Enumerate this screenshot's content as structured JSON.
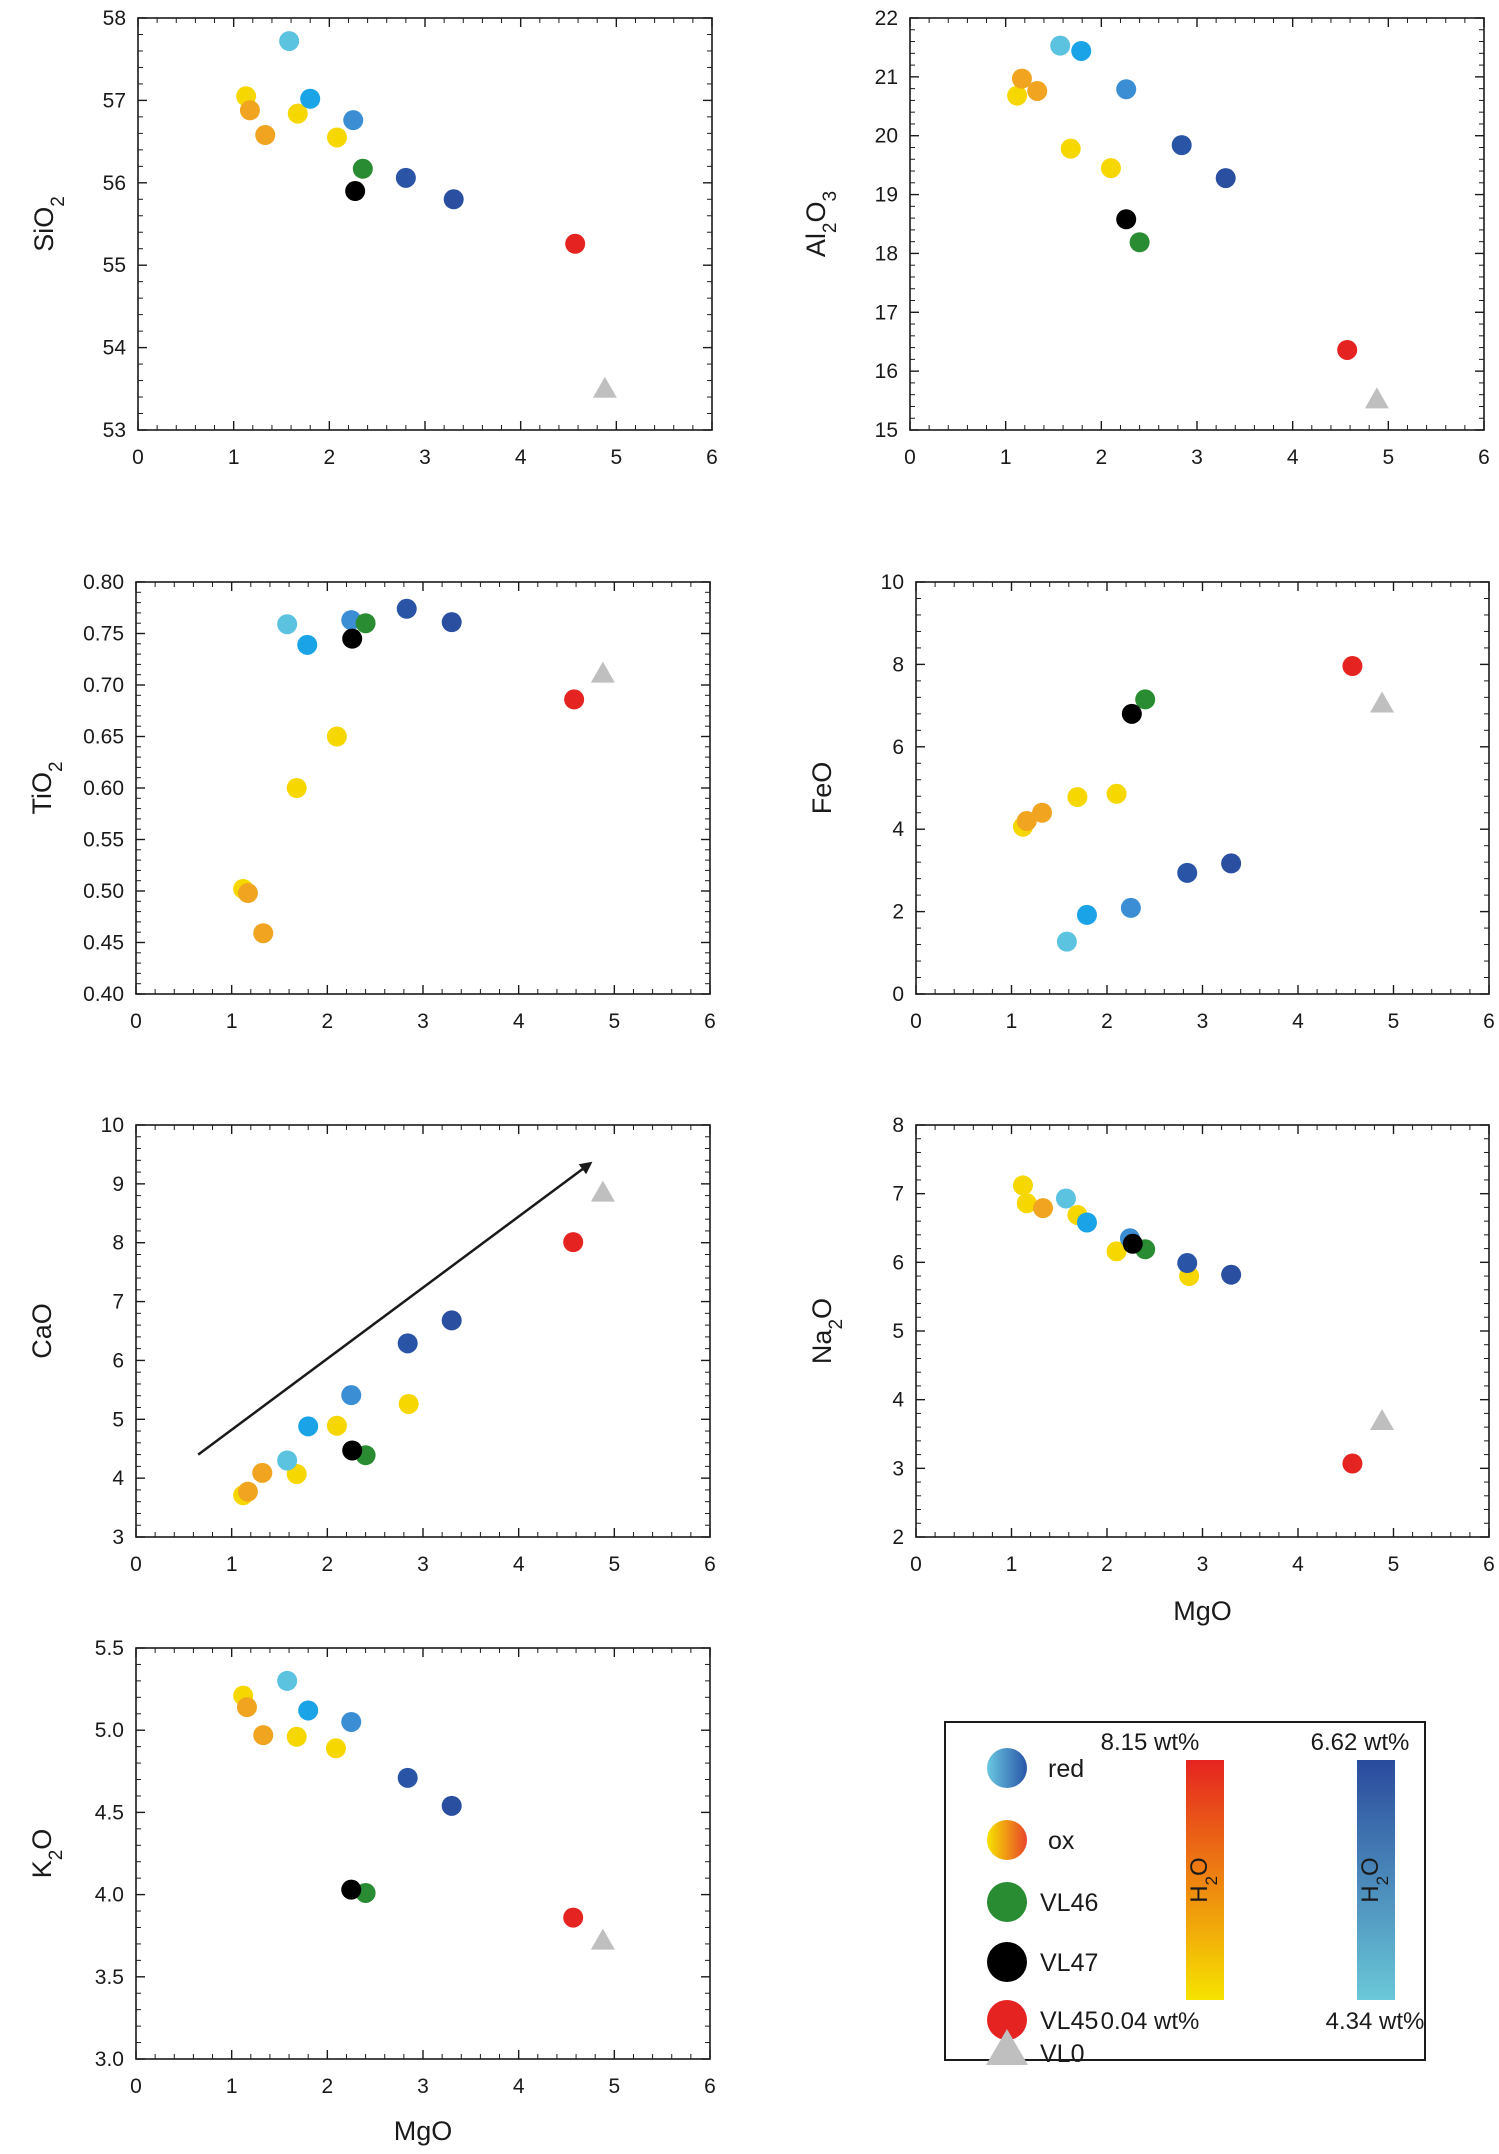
{
  "chart_data": [
    {
      "type": "scatter",
      "xlabel": "",
      "ylabel_main": "SiO",
      "ylabel_sub": "2",
      "xlim": [
        0,
        6
      ],
      "ylim": [
        53,
        58
      ],
      "xticks": [
        "0",
        "1",
        "2",
        "3",
        "4",
        "5",
        "6"
      ],
      "yticks": [
        "53",
        "54",
        "55",
        "56",
        "57",
        "58"
      ],
      "series": [
        {
          "name": "ox",
          "points": [
            {
              "x": 1.13,
              "y": 57.05,
              "c": "#f6d800"
            },
            {
              "x": 1.17,
              "y": 56.88,
              "c": "#f0a420"
            },
            {
              "x": 1.33,
              "y": 56.58,
              "c": "#f0a420"
            },
            {
              "x": 1.67,
              "y": 56.84,
              "c": "#f6d800"
            },
            {
              "x": 2.08,
              "y": 56.55,
              "c": "#f6d800"
            }
          ]
        },
        {
          "name": "red",
          "points": [
            {
              "x": 1.58,
              "y": 57.72,
              "c": "#5bc2e0"
            },
            {
              "x": 1.8,
              "y": 57.02,
              "c": "#1aa3e6"
            },
            {
              "x": 2.25,
              "y": 56.76,
              "c": "#3b8ed4"
            },
            {
              "x": 2.8,
              "y": 56.06,
              "c": "#2a55a6"
            },
            {
              "x": 3.3,
              "y": 55.8,
              "c": "#2a4ea0"
            }
          ]
        },
        {
          "name": "VL46",
          "points": [
            {
              "x": 2.35,
              "y": 56.17,
              "c": "#2a8c32"
            }
          ]
        },
        {
          "name": "VL47",
          "points": [
            {
              "x": 2.27,
              "y": 55.9,
              "c": "#000000"
            }
          ]
        },
        {
          "name": "VL45",
          "points": [
            {
              "x": 4.57,
              "y": 55.26,
              "c": "#e52421"
            }
          ]
        },
        {
          "name": "VL0",
          "points": [
            {
              "x": 4.88,
              "y": 53.5,
              "c": "#bfbfbf"
            }
          ]
        }
      ]
    },
    {
      "type": "scatter",
      "xlabel": "",
      "ylabel_main": "Al",
      "ylabel_sub": "2",
      "ylabel_main2": "O",
      "ylabel_sub2": "3",
      "xlim": [
        0,
        6
      ],
      "ylim": [
        15,
        22
      ],
      "xticks": [
        "0",
        "1",
        "2",
        "3",
        "4",
        "5",
        "6"
      ],
      "yticks": [
        "15",
        "16",
        "17",
        "18",
        "19",
        "20",
        "21",
        "22"
      ],
      "series": [
        {
          "name": "ox",
          "points": [
            {
              "x": 1.12,
              "y": 20.68,
              "c": "#f6d800"
            },
            {
              "x": 1.17,
              "y": 20.97,
              "c": "#f0a420"
            },
            {
              "x": 1.33,
              "y": 20.76,
              "c": "#f0a420"
            },
            {
              "x": 1.68,
              "y": 19.78,
              "c": "#f6d800"
            },
            {
              "x": 2.1,
              "y": 19.45,
              "c": "#f6d800"
            }
          ]
        },
        {
          "name": "red",
          "points": [
            {
              "x": 1.57,
              "y": 21.53,
              "c": "#5bc2e0"
            },
            {
              "x": 1.79,
              "y": 21.44,
              "c": "#1aa3e6"
            },
            {
              "x": 2.26,
              "y": 20.79,
              "c": "#3b8ed4"
            },
            {
              "x": 2.84,
              "y": 19.84,
              "c": "#2a55a6"
            },
            {
              "x": 3.3,
              "y": 19.28,
              "c": "#2a4ea0"
            }
          ]
        },
        {
          "name": "VL46",
          "points": [
            {
              "x": 2.4,
              "y": 18.19,
              "c": "#2a8c32"
            }
          ]
        },
        {
          "name": "VL47",
          "points": [
            {
              "x": 2.26,
              "y": 18.58,
              "c": "#000000"
            }
          ]
        },
        {
          "name": "VL45",
          "points": [
            {
              "x": 4.57,
              "y": 16.36,
              "c": "#e52421"
            }
          ]
        },
        {
          "name": "VL0",
          "points": [
            {
              "x": 4.88,
              "y": 15.52,
              "c": "#bfbfbf"
            }
          ]
        }
      ]
    },
    {
      "type": "scatter",
      "xlabel": "",
      "ylabel_main": "TiO",
      "ylabel_sub": "2",
      "xlim": [
        0,
        6
      ],
      "ylim": [
        0.4,
        0.8
      ],
      "xticks": [
        "0",
        "1",
        "2",
        "3",
        "4",
        "5",
        "6"
      ],
      "yticks": [
        "0.40",
        "0.45",
        "0.50",
        "0.55",
        "0.60",
        "0.65",
        "0.70",
        "0.75",
        "0.80"
      ],
      "series": [
        {
          "name": "ox",
          "points": [
            {
              "x": 1.12,
              "y": 0.502,
              "c": "#f6d800"
            },
            {
              "x": 1.17,
              "y": 0.498,
              "c": "#f0a420"
            },
            {
              "x": 1.33,
              "y": 0.459,
              "c": "#f0a420"
            },
            {
              "x": 1.68,
              "y": 0.6,
              "c": "#f6d800"
            },
            {
              "x": 2.1,
              "y": 0.65,
              "c": "#f6d800"
            }
          ]
        },
        {
          "name": "red",
          "points": [
            {
              "x": 1.58,
              "y": 0.759,
              "c": "#5bc2e0"
            },
            {
              "x": 1.79,
              "y": 0.739,
              "c": "#1aa3e6"
            },
            {
              "x": 2.25,
              "y": 0.763,
              "c": "#3b8ed4"
            },
            {
              "x": 2.83,
              "y": 0.774,
              "c": "#2a55a6"
            },
            {
              "x": 3.3,
              "y": 0.761,
              "c": "#2a4ea0"
            }
          ]
        },
        {
          "name": "VL46",
          "points": [
            {
              "x": 2.4,
              "y": 0.76,
              "c": "#2a8c32"
            }
          ]
        },
        {
          "name": "VL47",
          "points": [
            {
              "x": 2.26,
              "y": 0.745,
              "c": "#000000"
            }
          ]
        },
        {
          "name": "VL45",
          "points": [
            {
              "x": 4.58,
              "y": 0.686,
              "c": "#e52421"
            }
          ]
        },
        {
          "name": "VL0",
          "points": [
            {
              "x": 4.88,
              "y": 0.711,
              "c": "#bfbfbf"
            }
          ]
        }
      ]
    },
    {
      "type": "scatter",
      "xlabel": "",
      "ylabel_main": "FeO",
      "ylabel_sub": "",
      "xlim": [
        0,
        6
      ],
      "ylim": [
        0,
        10
      ],
      "xticks": [
        "0",
        "1",
        "2",
        "3",
        "4",
        "5",
        "6"
      ],
      "yticks": [
        "0",
        "2",
        "4",
        "6",
        "8",
        "10"
      ],
      "series": [
        {
          "name": "ox",
          "points": [
            {
              "x": 1.12,
              "y": 4.06,
              "c": "#f6d800"
            },
            {
              "x": 1.16,
              "y": 4.2,
              "c": "#f0a420"
            },
            {
              "x": 1.32,
              "y": 4.4,
              "c": "#f0a420"
            },
            {
              "x": 1.69,
              "y": 4.78,
              "c": "#f6d800"
            },
            {
              "x": 2.1,
              "y": 4.86,
              "c": "#f6d800"
            }
          ]
        },
        {
          "name": "red",
          "points": [
            {
              "x": 1.58,
              "y": 1.27,
              "c": "#5bc2e0"
            },
            {
              "x": 1.79,
              "y": 1.92,
              "c": "#1aa3e6"
            },
            {
              "x": 2.25,
              "y": 2.09,
              "c": "#3b8ed4"
            },
            {
              "x": 2.84,
              "y": 2.94,
              "c": "#2a55a6"
            },
            {
              "x": 3.3,
              "y": 3.17,
              "c": "#2a4ea0"
            }
          ]
        },
        {
          "name": "VL46",
          "points": [
            {
              "x": 2.4,
              "y": 7.15,
              "c": "#2a8c32"
            }
          ]
        },
        {
          "name": "VL47",
          "points": [
            {
              "x": 2.26,
              "y": 6.8,
              "c": "#000000"
            }
          ]
        },
        {
          "name": "VL45",
          "points": [
            {
              "x": 4.57,
              "y": 7.96,
              "c": "#e52421"
            }
          ]
        },
        {
          "name": "VL0",
          "points": [
            {
              "x": 4.88,
              "y": 7.05,
              "c": "#bfbfbf"
            }
          ]
        }
      ]
    },
    {
      "type": "scatter",
      "xlabel": "",
      "ylabel_main": "CaO",
      "ylabel_sub": "",
      "xlim": [
        0,
        6
      ],
      "ylim": [
        3,
        10
      ],
      "xticks": [
        "0",
        "1",
        "2",
        "3",
        "4",
        "5",
        "6"
      ],
      "yticks": [
        "3",
        "4",
        "5",
        "6",
        "7",
        "8",
        "9",
        "10"
      ],
      "arrow": {
        "from": [
          0.65,
          4.4
        ],
        "to": [
          4.75,
          9.35
        ]
      },
      "series": [
        {
          "name": "ox",
          "points": [
            {
              "x": 1.12,
              "y": 3.71,
              "c": "#f6d800"
            },
            {
              "x": 1.17,
              "y": 3.77,
              "c": "#f0a420"
            },
            {
              "x": 1.32,
              "y": 4.09,
              "c": "#f0a420"
            },
            {
              "x": 1.68,
              "y": 4.07,
              "c": "#f6d800"
            },
            {
              "x": 2.1,
              "y": 4.89,
              "c": "#f6d800"
            },
            {
              "x": 2.85,
              "y": 5.26,
              "c": "#f6d800"
            }
          ]
        },
        {
          "name": "red",
          "points": [
            {
              "x": 1.58,
              "y": 4.3,
              "c": "#5bc2e0"
            },
            {
              "x": 1.8,
              "y": 4.88,
              "c": "#1aa3e6"
            },
            {
              "x": 2.25,
              "y": 5.41,
              "c": "#3b8ed4"
            },
            {
              "x": 2.84,
              "y": 6.29,
              "c": "#2a55a6"
            },
            {
              "x": 3.3,
              "y": 6.68,
              "c": "#2a4ea0"
            }
          ]
        },
        {
          "name": "VL46",
          "points": [
            {
              "x": 2.4,
              "y": 4.39,
              "c": "#2a8c32"
            }
          ]
        },
        {
          "name": "VL47",
          "points": [
            {
              "x": 2.26,
              "y": 4.47,
              "c": "#000000"
            }
          ]
        },
        {
          "name": "VL45",
          "points": [
            {
              "x": 4.57,
              "y": 8.01,
              "c": "#e52421"
            }
          ]
        },
        {
          "name": "VL0",
          "points": [
            {
              "x": 4.88,
              "y": 8.85,
              "c": "#bfbfbf"
            }
          ]
        }
      ]
    },
    {
      "type": "scatter",
      "xlabel": "MgO",
      "ylabel_main": "Na",
      "ylabel_sub": "2",
      "ylabel_main2": "O",
      "ylabel_sub2": "",
      "xlim": [
        0,
        6
      ],
      "ylim": [
        2,
        8
      ],
      "xticks": [
        "0",
        "1",
        "2",
        "3",
        "4",
        "5",
        "6"
      ],
      "yticks": [
        "2",
        "3",
        "4",
        "5",
        "6",
        "7",
        "8"
      ],
      "series": [
        {
          "name": "ox",
          "points": [
            {
              "x": 1.12,
              "y": 7.12,
              "c": "#f6d800"
            },
            {
              "x": 1.16,
              "y": 6.86,
              "c": "#f6d800"
            },
            {
              "x": 1.33,
              "y": 6.79,
              "c": "#f0a420"
            },
            {
              "x": 1.69,
              "y": 6.69,
              "c": "#f6d800"
            },
            {
              "x": 2.1,
              "y": 6.16,
              "c": "#f6d800"
            },
            {
              "x": 2.86,
              "y": 5.8,
              "c": "#f6d800"
            }
          ]
        },
        {
          "name": "red",
          "points": [
            {
              "x": 1.57,
              "y": 6.93,
              "c": "#5bc2e0"
            },
            {
              "x": 1.79,
              "y": 6.58,
              "c": "#1aa3e6"
            },
            {
              "x": 2.24,
              "y": 6.35,
              "c": "#3b8ed4"
            },
            {
              "x": 2.84,
              "y": 5.99,
              "c": "#2a55a6"
            },
            {
              "x": 3.3,
              "y": 5.82,
              "c": "#2a4ea0"
            }
          ]
        },
        {
          "name": "VL46",
          "points": [
            {
              "x": 2.4,
              "y": 6.19,
              "c": "#2a8c32"
            }
          ]
        },
        {
          "name": "VL47",
          "points": [
            {
              "x": 2.27,
              "y": 6.27,
              "c": "#000000"
            }
          ]
        },
        {
          "name": "VL45",
          "points": [
            {
              "x": 4.57,
              "y": 3.07,
              "c": "#e52421"
            }
          ]
        },
        {
          "name": "VL0",
          "points": [
            {
              "x": 4.88,
              "y": 3.69,
              "c": "#bfbfbf"
            }
          ]
        }
      ]
    },
    {
      "type": "scatter",
      "xlabel": "MgO",
      "ylabel_main": "K",
      "ylabel_sub": "2",
      "ylabel_main2": "O",
      "ylabel_sub2": "",
      "xlim": [
        0,
        6
      ],
      "ylim": [
        3.0,
        5.5
      ],
      "xticks": [
        "0",
        "1",
        "2",
        "3",
        "4",
        "5",
        "6"
      ],
      "yticks": [
        "3.0",
        "3.5",
        "4.0",
        "4.5",
        "5.0",
        "5.5"
      ],
      "series": [
        {
          "name": "ox",
          "points": [
            {
              "x": 1.12,
              "y": 5.21,
              "c": "#f6d800"
            },
            {
              "x": 1.16,
              "y": 5.14,
              "c": "#f0a420"
            },
            {
              "x": 1.33,
              "y": 4.97,
              "c": "#f0a420"
            },
            {
              "x": 1.68,
              "y": 4.96,
              "c": "#f6d800"
            },
            {
              "x": 2.09,
              "y": 4.89,
              "c": "#f6d800"
            }
          ]
        },
        {
          "name": "red",
          "points": [
            {
              "x": 1.58,
              "y": 5.3,
              "c": "#5bc2e0"
            },
            {
              "x": 1.8,
              "y": 5.12,
              "c": "#1aa3e6"
            },
            {
              "x": 2.25,
              "y": 5.05,
              "c": "#3b8ed4"
            },
            {
              "x": 2.84,
              "y": 4.71,
              "c": "#2a55a6"
            },
            {
              "x": 3.3,
              "y": 4.54,
              "c": "#2a4ea0"
            }
          ]
        },
        {
          "name": "VL46",
          "points": [
            {
              "x": 2.4,
              "y": 4.01,
              "c": "#2a8c32"
            }
          ]
        },
        {
          "name": "VL47",
          "points": [
            {
              "x": 2.25,
              "y": 4.03,
              "c": "#000000"
            }
          ]
        },
        {
          "name": "VL45",
          "points": [
            {
              "x": 4.57,
              "y": 3.86,
              "c": "#e52421"
            }
          ]
        },
        {
          "name": "VL0",
          "points": [
            {
              "x": 4.88,
              "y": 3.72,
              "c": "#bfbfbf"
            }
          ]
        }
      ]
    }
  ],
  "legend": {
    "items": [
      {
        "label": "red",
        "marker": "gradient-blue-circle"
      },
      {
        "label": "ox",
        "marker": "gradient-orange-circle"
      },
      {
        "label": "VL46",
        "marker": "circle",
        "color": "#2a8c32"
      },
      {
        "label": "VL47",
        "marker": "circle",
        "color": "#000000"
      },
      {
        "label": "VL45",
        "marker": "circle",
        "color": "#e52421"
      },
      {
        "label": "VL0",
        "marker": "triangle",
        "color": "#bfbfbf"
      }
    ],
    "colorbar_ox": {
      "top_label": "8.15 wt%",
      "bottom_label": "0.04 wt%",
      "axis_main": "H",
      "axis_sub": "2",
      "axis_main2": "O",
      "top_color": "#e52421",
      "bottom_color": "#f6e300"
    },
    "colorbar_red": {
      "top_label": "6.62 wt%",
      "bottom_label": "4.34 wt%",
      "axis_main": "H",
      "axis_sub": "2",
      "axis_main2": "O",
      "top_color": "#2a4a9c",
      "bottom_color": "#6ac8d8"
    }
  }
}
